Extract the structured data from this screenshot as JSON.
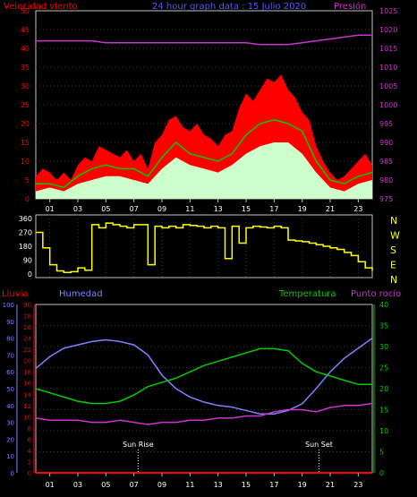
{
  "colors": {
    "wind_gust": "#ff0000",
    "wind_avg": "#00cc00",
    "wind_low": "#ccffcc",
    "pressure": "#cc33cc",
    "direction": "#ffff00",
    "humidity": "#8080ff",
    "temperature": "#00cc00",
    "dew_point": "#cc33cc",
    "rain": "#ff0000",
    "grid": "#404040",
    "frame": "#c0c0c0",
    "label": "#ffffff"
  },
  "chart_data": [
    {
      "type": "area",
      "title": "24 hour graph data : 15 Julio 2020",
      "left_axis_title": "Velocidad viento",
      "right_axis_title": "Presión",
      "left_ticks": [
        "0",
        "5",
        "10",
        "15",
        "20",
        "25",
        "30",
        "35",
        "40",
        "45",
        "50"
      ],
      "right_ticks": [
        "975",
        "980",
        "985",
        "990",
        "995",
        "1000",
        "1005",
        "1010",
        "1015",
        "1020",
        "1025"
      ],
      "x_ticks": [
        "01",
        "03",
        "05",
        "07",
        "09",
        "11",
        "13",
        "15",
        "17",
        "19",
        "21",
        "23"
      ],
      "ylim_left": [
        0,
        50
      ],
      "ylim_right": [
        975,
        1025
      ],
      "series": [
        {
          "role": "wind_gust",
          "x": [
            0,
            0.5,
            1,
            1.5,
            2,
            2.5,
            3,
            3.5,
            4,
            4.5,
            5,
            5.5,
            6,
            6.5,
            7,
            7.5,
            8,
            8.5,
            9,
            9.5,
            10,
            10.5,
            11,
            11.5,
            12,
            12.5,
            13,
            13.5,
            14,
            14.5,
            15,
            15.5,
            16,
            16.5,
            17,
            17.5,
            18,
            18.5,
            19,
            19.5,
            20,
            20.5,
            21,
            21.5,
            22,
            22.5,
            23,
            23.5,
            24
          ],
          "values": [
            6,
            8,
            7,
            5,
            7,
            5,
            9,
            11,
            10,
            14,
            13,
            12,
            11,
            13,
            10,
            12,
            8,
            15,
            17,
            21,
            22,
            19,
            18,
            20,
            17,
            16,
            14,
            17,
            18,
            24,
            28,
            26,
            29,
            32,
            31,
            33,
            29,
            27,
            23,
            21,
            14,
            10,
            7,
            5,
            6,
            8,
            10,
            12,
            9
          ]
        },
        {
          "role": "wind_avg",
          "x": [
            0,
            1,
            2,
            3,
            4,
            5,
            6,
            7,
            8,
            9,
            10,
            11,
            12,
            13,
            14,
            15,
            16,
            17,
            18,
            19,
            20,
            21,
            22,
            23,
            24
          ],
          "values": [
            4,
            4,
            3,
            6,
            8,
            9,
            8,
            8,
            6,
            11,
            15,
            12,
            11,
            10,
            12,
            17,
            20,
            21,
            20,
            18,
            10,
            5,
            4,
            6,
            7
          ]
        },
        {
          "role": "wind_low",
          "x": [
            0,
            1,
            2,
            3,
            4,
            5,
            6,
            7,
            8,
            9,
            10,
            11,
            12,
            13,
            14,
            15,
            16,
            17,
            18,
            19,
            20,
            21,
            22,
            23,
            24
          ],
          "values": [
            2,
            3,
            2,
            4,
            5,
            6,
            6,
            5,
            4,
            8,
            11,
            9,
            8,
            7,
            9,
            12,
            14,
            15,
            15,
            12,
            7,
            3,
            2,
            4,
            5
          ]
        },
        {
          "role": "pressure",
          "x": [
            0,
            1,
            2,
            3,
            4,
            5,
            6,
            7,
            8,
            9,
            10,
            11,
            12,
            13,
            14,
            15,
            16,
            17,
            18,
            19,
            20,
            21,
            22,
            23,
            24
          ],
          "values": [
            1017,
            1017,
            1017,
            1017,
            1017,
            1016.5,
            1016.5,
            1016.5,
            1016.5,
            1016.5,
            1016.5,
            1016.5,
            1016.5,
            1016.5,
            1016.5,
            1016.5,
            1016,
            1016,
            1016,
            1016.5,
            1017,
            1017.5,
            1018,
            1018.5,
            1018.5
          ]
        }
      ]
    },
    {
      "type": "line",
      "right_labels": [
        "N",
        "W",
        "S",
        "E",
        "N"
      ],
      "left_ticks": [
        "360",
        "270",
        "180",
        "90",
        "0"
      ],
      "ylim": [
        0,
        360
      ],
      "x_ticks": [
        "01",
        "03",
        "05",
        "07",
        "09",
        "11",
        "13",
        "15",
        "17",
        "19",
        "21",
        "23"
      ],
      "series": [
        {
          "role": "direction",
          "x": [
            0,
            0.5,
            1,
            1.5,
            2,
            2.5,
            3,
            3.5,
            4,
            4.5,
            5,
            5.5,
            6,
            6.5,
            7,
            7.5,
            8,
            8.5,
            9,
            9.5,
            10,
            10.5,
            11,
            11.5,
            12,
            12.5,
            13,
            13.5,
            14,
            14.5,
            15,
            15.5,
            16,
            16.5,
            17,
            17.5,
            18,
            18.5,
            19,
            19.5,
            20,
            20.5,
            21,
            21.5,
            22,
            22.5,
            23,
            23.5,
            24
          ],
          "values": [
            270,
            170,
            60,
            20,
            10,
            15,
            40,
            25,
            320,
            300,
            330,
            320,
            310,
            300,
            320,
            320,
            60,
            310,
            300,
            310,
            300,
            320,
            315,
            310,
            300,
            310,
            300,
            100,
            310,
            200,
            300,
            310,
            305,
            300,
            310,
            300,
            220,
            215,
            210,
            200,
            190,
            180,
            170,
            160,
            140,
            120,
            80,
            40,
            20
          ]
        }
      ]
    },
    {
      "type": "line",
      "left_axis_title": "Lluvia",
      "second_axis_title": "Humedad",
      "right_axis_title_1": "Temperatura",
      "right_axis_title_2": "Punto rocío",
      "rain_ticks": [
        "0",
        "2",
        "4",
        "6",
        "8",
        "10",
        "12",
        "14",
        "16",
        "18",
        "20",
        "22",
        "24",
        "26",
        "28",
        "30"
      ],
      "humidity_ticks": [
        "0",
        "10",
        "20",
        "30",
        "40",
        "50",
        "60",
        "70",
        "80",
        "90",
        "100"
      ],
      "temp_ticks": [
        "0",
        "5",
        "10",
        "15",
        "20",
        "25",
        "30",
        "35",
        "40"
      ],
      "x_ticks": [
        "01",
        "03",
        "05",
        "07",
        "09",
        "11",
        "13",
        "15",
        "17",
        "19",
        "21",
        "23"
      ],
      "annotations": [
        "Sun Rise",
        "Sun Set"
      ],
      "annotation_x": [
        7.3,
        20.2
      ],
      "series": [
        {
          "role": "humidity",
          "axis": "humidity",
          "x": [
            0,
            1,
            2,
            3,
            4,
            5,
            6,
            7,
            8,
            9,
            10,
            11,
            12,
            13,
            14,
            15,
            16,
            17,
            18,
            19,
            20,
            21,
            22,
            23,
            24
          ],
          "values": [
            62,
            69,
            74,
            76,
            78,
            79,
            78,
            76,
            70,
            58,
            50,
            45,
            42,
            40,
            39,
            37,
            35,
            35,
            37,
            41,
            50,
            60,
            68,
            74,
            80
          ]
        },
        {
          "role": "temperature",
          "axis": "temp",
          "x": [
            0,
            1,
            2,
            3,
            4,
            5,
            6,
            7,
            8,
            9,
            10,
            11,
            12,
            13,
            14,
            15,
            16,
            17,
            18,
            19,
            20,
            21,
            22,
            23,
            24
          ],
          "values": [
            20,
            19,
            18,
            17,
            16.5,
            16.5,
            17,
            18.5,
            20.5,
            21.5,
            22.5,
            24,
            25.5,
            26.5,
            27.5,
            28.5,
            29.5,
            29.5,
            29,
            26,
            24,
            23,
            22,
            21,
            21
          ]
        },
        {
          "role": "dew_point",
          "axis": "temp",
          "x": [
            0,
            1,
            2,
            3,
            4,
            5,
            6,
            7,
            8,
            9,
            10,
            11,
            12,
            13,
            14,
            15,
            16,
            17,
            18,
            19,
            20,
            21,
            22,
            23,
            24
          ],
          "values": [
            13,
            12.5,
            12.5,
            12.5,
            12,
            12,
            12.5,
            12,
            11.5,
            12,
            12,
            12.5,
            12.5,
            13,
            13,
            13.5,
            13.5,
            14.5,
            15,
            15,
            14.5,
            15.5,
            16,
            16,
            16.5
          ]
        },
        {
          "role": "rain",
          "axis": "rain",
          "x": [
            0,
            24
          ],
          "values": [
            0,
            0
          ]
        }
      ]
    }
  ]
}
